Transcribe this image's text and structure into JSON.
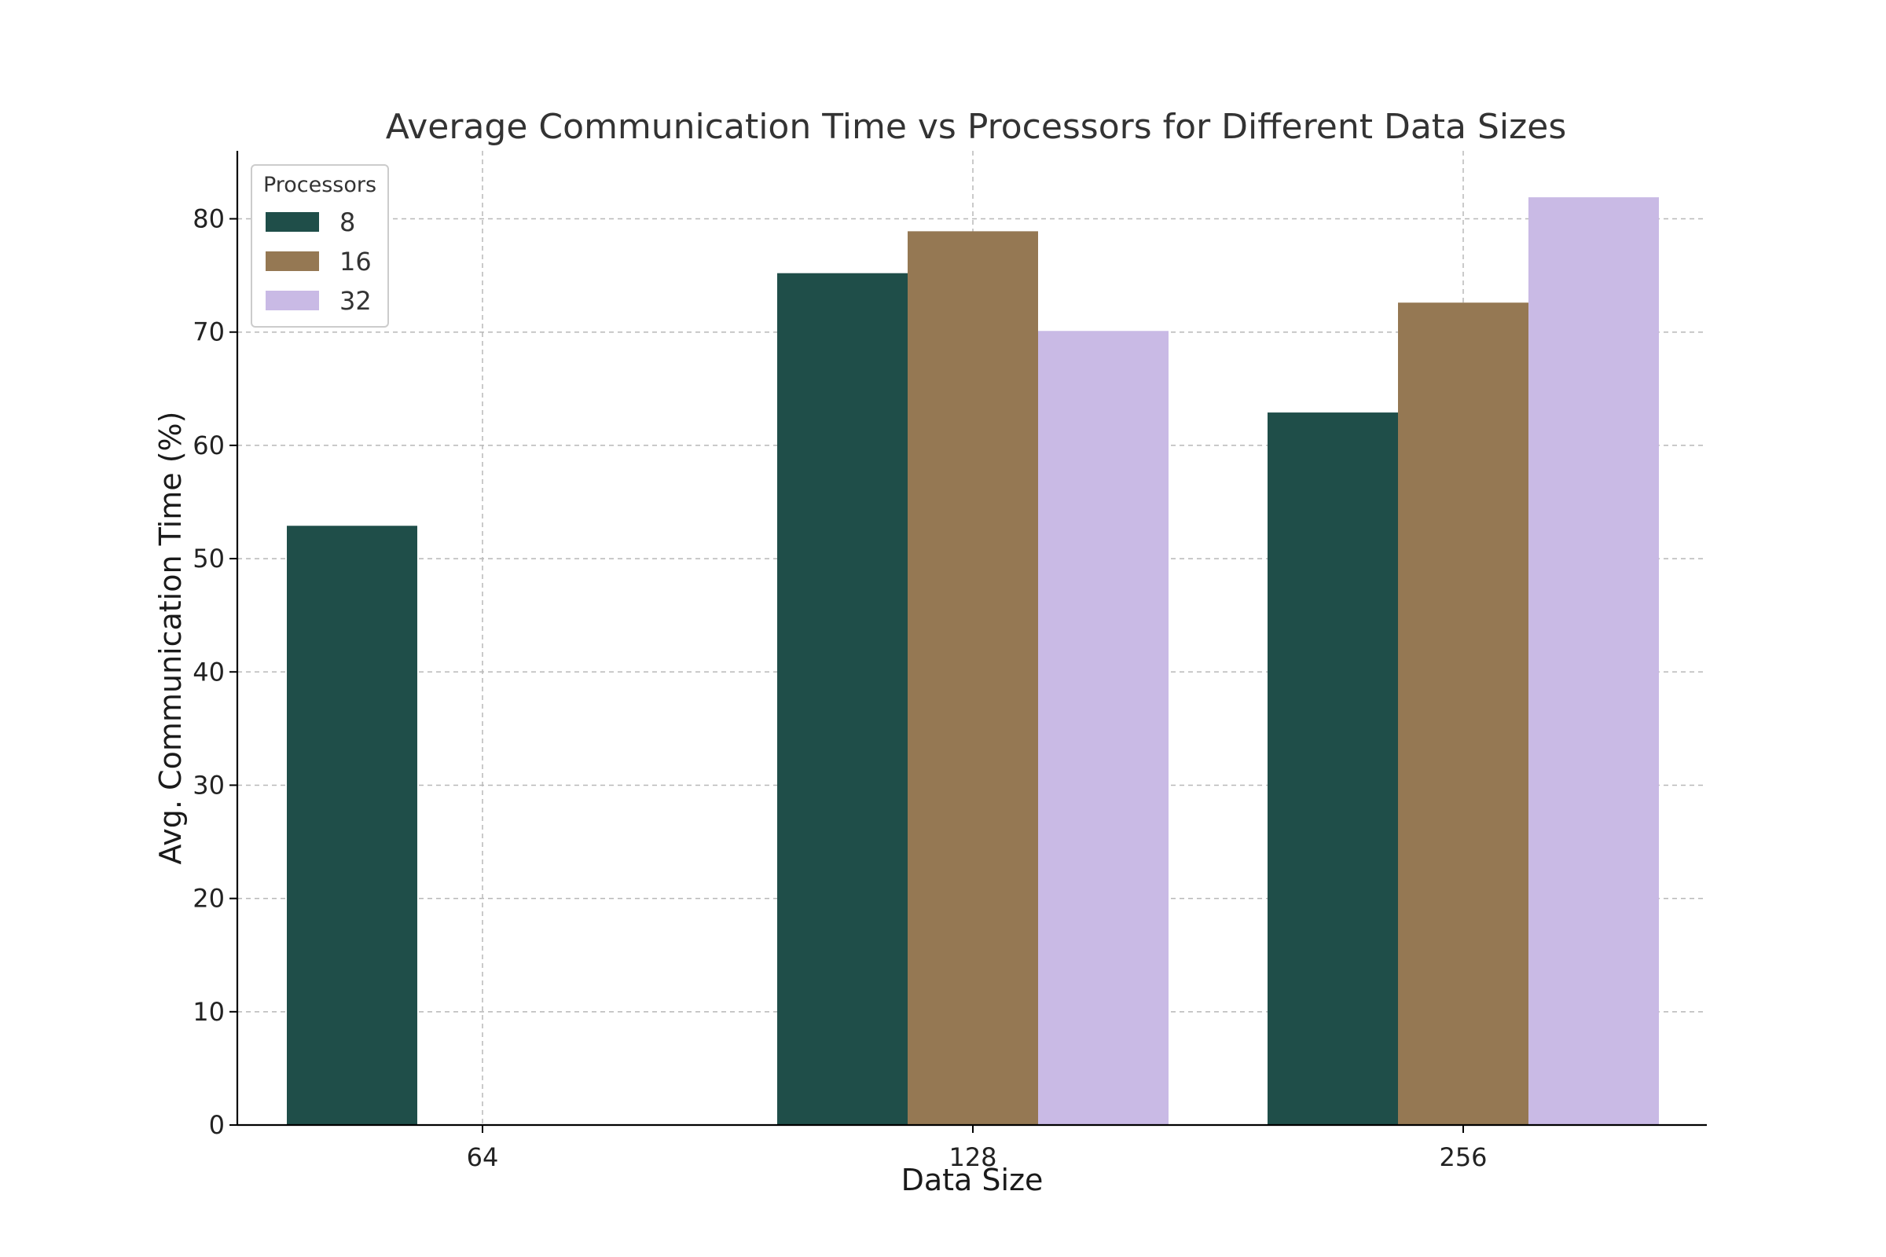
{
  "chart_data": {
    "type": "bar",
    "title": "Average Communication Time vs Processors for Different Data Sizes",
    "xlabel": "Data Size",
    "ylabel": "Avg. Communication Time (%)",
    "categories": [
      "64",
      "128",
      "256"
    ],
    "ylim": [
      0,
      86
    ],
    "yticks": [
      0,
      10,
      20,
      30,
      40,
      50,
      60,
      70,
      80
    ],
    "grid": true,
    "legend": {
      "title": "Processors",
      "placement": "top-left"
    },
    "series": [
      {
        "name": "8",
        "color": "#1f4e49",
        "values": [
          52.9,
          75.2,
          62.9
        ]
      },
      {
        "name": "16",
        "color": "#957853",
        "values": [
          null,
          78.9,
          72.6
        ]
      },
      {
        "name": "32",
        "color": "#c9bae5",
        "values": [
          null,
          70.1,
          81.9
        ]
      }
    ]
  }
}
